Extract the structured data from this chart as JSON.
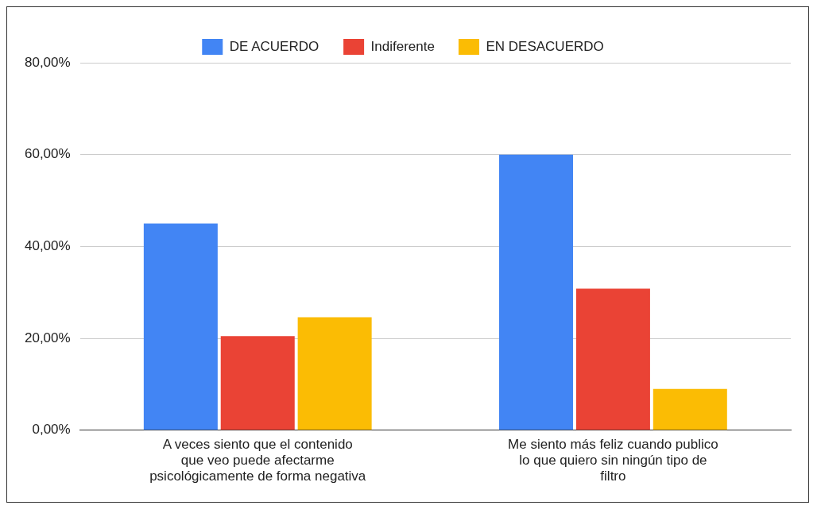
{
  "chart_data": {
    "type": "bar",
    "categories": [
      "A veces siento que el contenido que veo puede afectarme psicológicamente de forma negativa",
      "Me siento más feliz cuando publico lo que quiero sin ningún tipo de filtro"
    ],
    "series": [
      {
        "name": "DE ACUERDO",
        "color": "#4285f4",
        "values": [
          45,
          60
        ]
      },
      {
        "name": "Indiferente",
        "color": "#ea4335",
        "values": [
          20.5,
          30.8
        ]
      },
      {
        "name": "EN DESACUERDO",
        "color": "#fbbc04",
        "values": [
          24.6,
          9
        ]
      }
    ],
    "ylim": [
      0,
      80
    ],
    "yticks": [
      {
        "value": 0,
        "label": "0,00%"
      },
      {
        "value": 20,
        "label": "20,00%"
      },
      {
        "value": 40,
        "label": "40,00%"
      },
      {
        "value": 60,
        "label": "60,00%"
      },
      {
        "value": 80,
        "label": "80,00%"
      }
    ],
    "grid": "y",
    "legend": "top"
  }
}
